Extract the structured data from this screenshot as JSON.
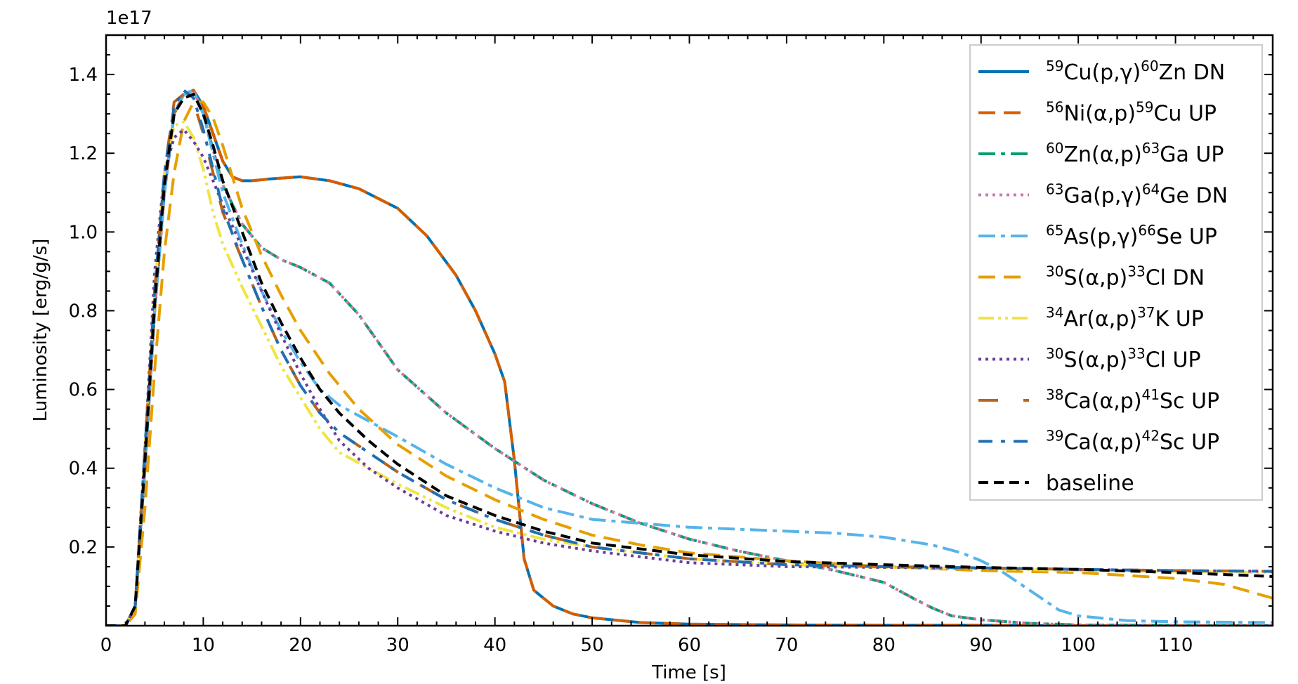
{
  "chart_data": {
    "type": "line",
    "xlabel": "Time [s]",
    "ylabel": "Luminosity [erg/g/s]",
    "offset_label": "1e17",
    "xlim": [
      0,
      120
    ],
    "ylim": [
      0.0,
      1.5
    ],
    "xticks": [
      0,
      10,
      20,
      30,
      40,
      50,
      60,
      70,
      80,
      90,
      100,
      110
    ],
    "yticks": [
      0.2,
      0.4,
      0.6,
      0.8,
      1.0,
      1.2,
      1.4
    ],
    "xtick_labels": [
      "0",
      "10",
      "20",
      "30",
      "40",
      "50",
      "60",
      "70",
      "80",
      "90",
      "100",
      "110"
    ],
    "ytick_labels": [
      "0.2",
      "0.4",
      "0.6",
      "0.8",
      "1.0",
      "1.2",
      "1.4"
    ],
    "grid": false,
    "legend_position": "top-right",
    "series": [
      {
        "name": "⁵⁹Cu(p,γ)⁶⁰Zn DN",
        "nuc1": "59",
        "a": "Cu(p,γ)",
        "nuc2": "60",
        "b": "Zn DN",
        "color": "#0072b2",
        "dash": "solid",
        "width": 4,
        "x": [
          0,
          2,
          3,
          4,
          5,
          6,
          7,
          8,
          9,
          10,
          11,
          12,
          13,
          14,
          15,
          17,
          20,
          23,
          26,
          30,
          33,
          36,
          38,
          40,
          41,
          42,
          43,
          44,
          46,
          48,
          50,
          55,
          60,
          70,
          80,
          90,
          100,
          110,
          120
        ],
        "y": [
          0.0,
          0.0,
          0.05,
          0.4,
          0.8,
          1.1,
          1.3,
          1.35,
          1.36,
          1.32,
          1.25,
          1.18,
          1.14,
          1.13,
          1.13,
          1.135,
          1.14,
          1.13,
          1.11,
          1.06,
          0.99,
          0.89,
          0.8,
          0.69,
          0.62,
          0.42,
          0.17,
          0.09,
          0.05,
          0.03,
          0.02,
          0.008,
          0.004,
          0.002,
          0.001,
          0.001,
          0.0,
          0.0,
          0.0
        ]
      },
      {
        "name": "⁵⁶Ni(α,p)⁵⁹Cu UP",
        "nuc1": "56",
        "a": "Ni(α,p)",
        "nuc2": "59",
        "b": "Cu UP",
        "color": "#d55e00",
        "dash": "24,12",
        "width": 4,
        "x": [
          0,
          2,
          3,
          4,
          5,
          6,
          7,
          8,
          9,
          10,
          11,
          12,
          13,
          14,
          15,
          17,
          20,
          23,
          26,
          30,
          33,
          36,
          38,
          40,
          41,
          42,
          43,
          44,
          46,
          48,
          50,
          55,
          60,
          70,
          80,
          90,
          100,
          110,
          120
        ],
        "y": [
          0.0,
          0.0,
          0.05,
          0.4,
          0.8,
          1.1,
          1.3,
          1.35,
          1.36,
          1.32,
          1.25,
          1.18,
          1.14,
          1.13,
          1.13,
          1.135,
          1.14,
          1.13,
          1.11,
          1.06,
          0.99,
          0.89,
          0.8,
          0.69,
          0.62,
          0.42,
          0.17,
          0.09,
          0.05,
          0.03,
          0.02,
          0.008,
          0.004,
          0.002,
          0.001,
          0.001,
          0.0,
          0.0,
          0.0
        ]
      },
      {
        "name": "⁶⁰Zn(α,p)⁶³Ga UP",
        "nuc1": "60",
        "a": "Zn(α,p)",
        "nuc2": "63",
        "b": "Ga UP",
        "color": "#009e73",
        "dash": "24,8,6,8",
        "width": 4,
        "x": [
          0,
          2,
          3,
          4,
          5,
          6,
          7,
          8,
          9,
          10,
          12,
          14,
          16,
          18,
          20,
          23,
          26,
          30,
          35,
          40,
          45,
          50,
          55,
          60,
          65,
          70,
          75,
          80,
          83,
          85,
          87,
          90,
          95,
          100,
          110,
          120
        ],
        "y": [
          0.0,
          0.0,
          0.05,
          0.4,
          0.8,
          1.1,
          1.3,
          1.35,
          1.36,
          1.3,
          1.12,
          1.02,
          0.96,
          0.93,
          0.91,
          0.87,
          0.79,
          0.65,
          0.54,
          0.45,
          0.37,
          0.31,
          0.26,
          0.22,
          0.19,
          0.165,
          0.14,
          0.11,
          0.07,
          0.045,
          0.025,
          0.015,
          0.006,
          0.002,
          0.001,
          0.0
        ]
      },
      {
        "name": "⁶³Ga(p,γ)⁶⁴Ge DN",
        "nuc1": "63",
        "a": "Ga(p,γ)",
        "nuc2": "64",
        "b": "Ge DN",
        "color": "#cc79a7",
        "dash": "4,6",
        "width": 4,
        "x": [
          0,
          2,
          3,
          4,
          5,
          6,
          7,
          8,
          9,
          10,
          12,
          14,
          16,
          18,
          20,
          23,
          26,
          30,
          35,
          40,
          45,
          50,
          55,
          60,
          65,
          70,
          75,
          80,
          83,
          85,
          87,
          90,
          95,
          100,
          110,
          120
        ],
        "y": [
          0.0,
          0.0,
          0.05,
          0.4,
          0.8,
          1.1,
          1.3,
          1.35,
          1.36,
          1.3,
          1.12,
          1.02,
          0.96,
          0.93,
          0.91,
          0.87,
          0.79,
          0.65,
          0.54,
          0.45,
          0.37,
          0.31,
          0.26,
          0.22,
          0.19,
          0.165,
          0.14,
          0.11,
          0.07,
          0.045,
          0.025,
          0.015,
          0.006,
          0.002,
          0.001,
          0.0
        ]
      },
      {
        "name": "⁶⁵As(p,γ)⁶⁶Se UP",
        "nuc1": "65",
        "a": "As(p,γ)",
        "nuc2": "66",
        "b": "Se UP",
        "color": "#56b4e9",
        "dash": "24,8,6,8",
        "width": 4,
        "x": [
          0,
          2,
          3,
          4,
          5,
          6,
          7,
          8,
          9,
          10,
          12,
          14,
          16,
          18,
          20,
          22,
          24,
          27,
          30,
          35,
          40,
          45,
          50,
          55,
          60,
          65,
          70,
          75,
          80,
          85,
          88,
          90,
          92,
          95,
          98,
          100,
          105,
          110,
          120
        ],
        "y": [
          0.0,
          0.0,
          0.05,
          0.4,
          0.8,
          1.1,
          1.3,
          1.35,
          1.36,
          1.3,
          1.1,
          0.97,
          0.85,
          0.75,
          0.67,
          0.6,
          0.56,
          0.52,
          0.48,
          0.41,
          0.35,
          0.3,
          0.27,
          0.26,
          0.25,
          0.245,
          0.24,
          0.235,
          0.225,
          0.205,
          0.185,
          0.165,
          0.14,
          0.09,
          0.04,
          0.025,
          0.013,
          0.01,
          0.008
        ]
      },
      {
        "name": "³⁰S(α,p)³³Cl DN",
        "nuc1": "30",
        "a": "S(α,p)",
        "nuc2": "33",
        "b": "Cl DN",
        "color": "#e69f00",
        "dash": "24,12",
        "width": 4,
        "x": [
          0,
          2,
          3,
          4,
          5,
          6,
          7,
          8,
          9,
          10,
          11,
          12,
          14,
          16,
          18,
          20,
          23,
          26,
          30,
          35,
          40,
          45,
          50,
          55,
          60,
          70,
          80,
          90,
          100,
          110,
          115,
          120
        ],
        "y": [
          0.0,
          0.0,
          0.03,
          0.3,
          0.65,
          0.95,
          1.15,
          1.28,
          1.33,
          1.33,
          1.29,
          1.22,
          1.06,
          0.94,
          0.84,
          0.75,
          0.64,
          0.55,
          0.46,
          0.38,
          0.32,
          0.27,
          0.23,
          0.205,
          0.185,
          0.165,
          0.15,
          0.14,
          0.135,
          0.12,
          0.105,
          0.07
        ]
      },
      {
        "name": "³⁴Ar(α,p)³⁷K UP",
        "nuc1": "34",
        "a": "Ar(α,p)",
        "nuc2": "37",
        "b": "K UP",
        "color": "#f0e442",
        "dash": "22,6,4,6,4,6",
        "width": 4,
        "x": [
          0,
          2,
          3,
          4,
          5,
          6,
          7,
          8,
          9,
          10,
          11,
          12,
          14,
          16,
          18,
          20,
          22,
          24,
          27,
          30,
          35,
          40,
          45,
          50,
          60,
          70,
          80,
          90,
          100,
          110,
          120
        ],
        "y": [
          0.0,
          0.0,
          0.05,
          0.45,
          0.85,
          1.15,
          1.27,
          1.28,
          1.24,
          1.16,
          1.05,
          0.97,
          0.86,
          0.76,
          0.66,
          0.58,
          0.5,
          0.44,
          0.4,
          0.36,
          0.3,
          0.25,
          0.22,
          0.2,
          0.17,
          0.155,
          0.148,
          0.145,
          0.14,
          0.138,
          0.135
        ]
      },
      {
        "name": "³⁰S(α,p)³³Cl UP",
        "nuc1": "30",
        "a": "S(α,p)",
        "nuc2": "33",
        "b": "Cl UP",
        "color": "#6a3d9a",
        "dash": "4,6",
        "width": 4,
        "x": [
          0,
          2,
          3,
          4,
          5,
          6,
          7,
          8,
          9,
          10,
          11,
          12,
          14,
          16,
          18,
          20,
          22,
          24,
          27,
          30,
          35,
          40,
          45,
          50,
          60,
          70,
          80,
          90,
          100,
          110,
          120
        ],
        "y": [
          0.0,
          0.0,
          0.05,
          0.45,
          0.9,
          1.15,
          1.24,
          1.26,
          1.23,
          1.19,
          1.13,
          1.07,
          0.96,
          0.85,
          0.74,
          0.64,
          0.55,
          0.47,
          0.4,
          0.35,
          0.28,
          0.24,
          0.21,
          0.19,
          0.16,
          0.15,
          0.148,
          0.146,
          0.143,
          0.14,
          0.138
        ]
      },
      {
        "name": "³⁸Ca(α,p)⁴¹Sc UP",
        "nuc1": "38",
        "a": "Ca(α,p)",
        "nuc2": "41",
        "b": "Sc UP",
        "color": "#b5651d",
        "dash": "28,36",
        "width": 4,
        "x": [
          0,
          2,
          3,
          4,
          5,
          6,
          7,
          8,
          9,
          10,
          11,
          12,
          14,
          16,
          18,
          20,
          22,
          24,
          27,
          30,
          35,
          40,
          45,
          50,
          60,
          70,
          80,
          90,
          100,
          110,
          120
        ],
        "y": [
          0.0,
          0.0,
          0.05,
          0.45,
          0.85,
          1.15,
          1.33,
          1.35,
          1.33,
          1.25,
          1.15,
          1.05,
          0.93,
          0.81,
          0.7,
          0.61,
          0.54,
          0.49,
          0.44,
          0.39,
          0.32,
          0.27,
          0.23,
          0.2,
          0.17,
          0.155,
          0.15,
          0.147,
          0.143,
          0.14,
          0.138
        ]
      },
      {
        "name": "³⁹Ca(α,p)⁴²Sc UP",
        "nuc1": "39",
        "a": "Ca(α,p)",
        "nuc2": "42",
        "b": "Sc UP",
        "color": "#1f6fb2",
        "dash": "20,12,6,12",
        "width": 4,
        "x": [
          0,
          2,
          3,
          4,
          5,
          6,
          7,
          8,
          9,
          10,
          11,
          12,
          14,
          16,
          18,
          20,
          22,
          24,
          27,
          30,
          35,
          40,
          45,
          50,
          60,
          70,
          80,
          90,
          100,
          110,
          120
        ],
        "y": [
          0.0,
          0.0,
          0.05,
          0.45,
          0.85,
          1.15,
          1.32,
          1.36,
          1.34,
          1.26,
          1.16,
          1.06,
          0.93,
          0.81,
          0.7,
          0.61,
          0.54,
          0.49,
          0.44,
          0.39,
          0.32,
          0.27,
          0.23,
          0.2,
          0.17,
          0.155,
          0.15,
          0.147,
          0.143,
          0.14,
          0.138
        ]
      },
      {
        "name": "baseline",
        "nuc1": "",
        "a": "baseline",
        "nuc2": "",
        "b": "",
        "color": "#000000",
        "dash": "14,8",
        "width": 4,
        "x": [
          0,
          2,
          3,
          4,
          5,
          6,
          7,
          8,
          9,
          10,
          11,
          12,
          14,
          16,
          18,
          20,
          22,
          24,
          27,
          30,
          35,
          40,
          45,
          50,
          60,
          70,
          80,
          90,
          100,
          110,
          120
        ],
        "y": [
          0.0,
          0.0,
          0.05,
          0.42,
          0.82,
          1.12,
          1.3,
          1.34,
          1.35,
          1.3,
          1.22,
          1.13,
          1.0,
          0.87,
          0.77,
          0.68,
          0.6,
          0.54,
          0.47,
          0.41,
          0.33,
          0.28,
          0.24,
          0.21,
          0.18,
          0.163,
          0.155,
          0.148,
          0.143,
          0.135,
          0.125
        ]
      }
    ]
  }
}
